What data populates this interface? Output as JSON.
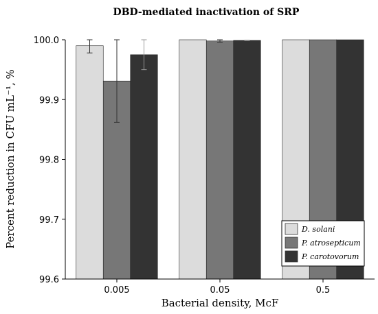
{
  "chart_data": {
    "type": "bar",
    "title": "DBD-mediated inactivation of SRP",
    "xlabel": "Bacterial density, McF",
    "ylabel": "Percent reduction in CFU mL⁻¹, %",
    "categories": [
      "0.005",
      "0.05",
      "0.5"
    ],
    "ylim": [
      99.6,
      100.0
    ],
    "yticks": [
      "99.6",
      "99.7",
      "99.8",
      "99.9",
      "100.0"
    ],
    "grid": false,
    "legend_position": "bottom-right",
    "series": [
      {
        "name": "D. solani",
        "color": "#dcdcdc",
        "values": [
          99.99,
          100.0,
          100.0
        ],
        "errors": [
          0.012,
          0.0,
          0.0
        ]
      },
      {
        "name": "P. atrosepticum",
        "color": "#777777",
        "values": [
          99.931,
          99.998,
          100.0
        ],
        "errors": [
          0.069,
          0.002,
          0.0
        ]
      },
      {
        "name": "P. carotovorum",
        "color": "#333333",
        "values": [
          99.975,
          99.999,
          100.0
        ],
        "errors": [
          0.025,
          0.0005,
          0.0
        ]
      }
    ]
  }
}
